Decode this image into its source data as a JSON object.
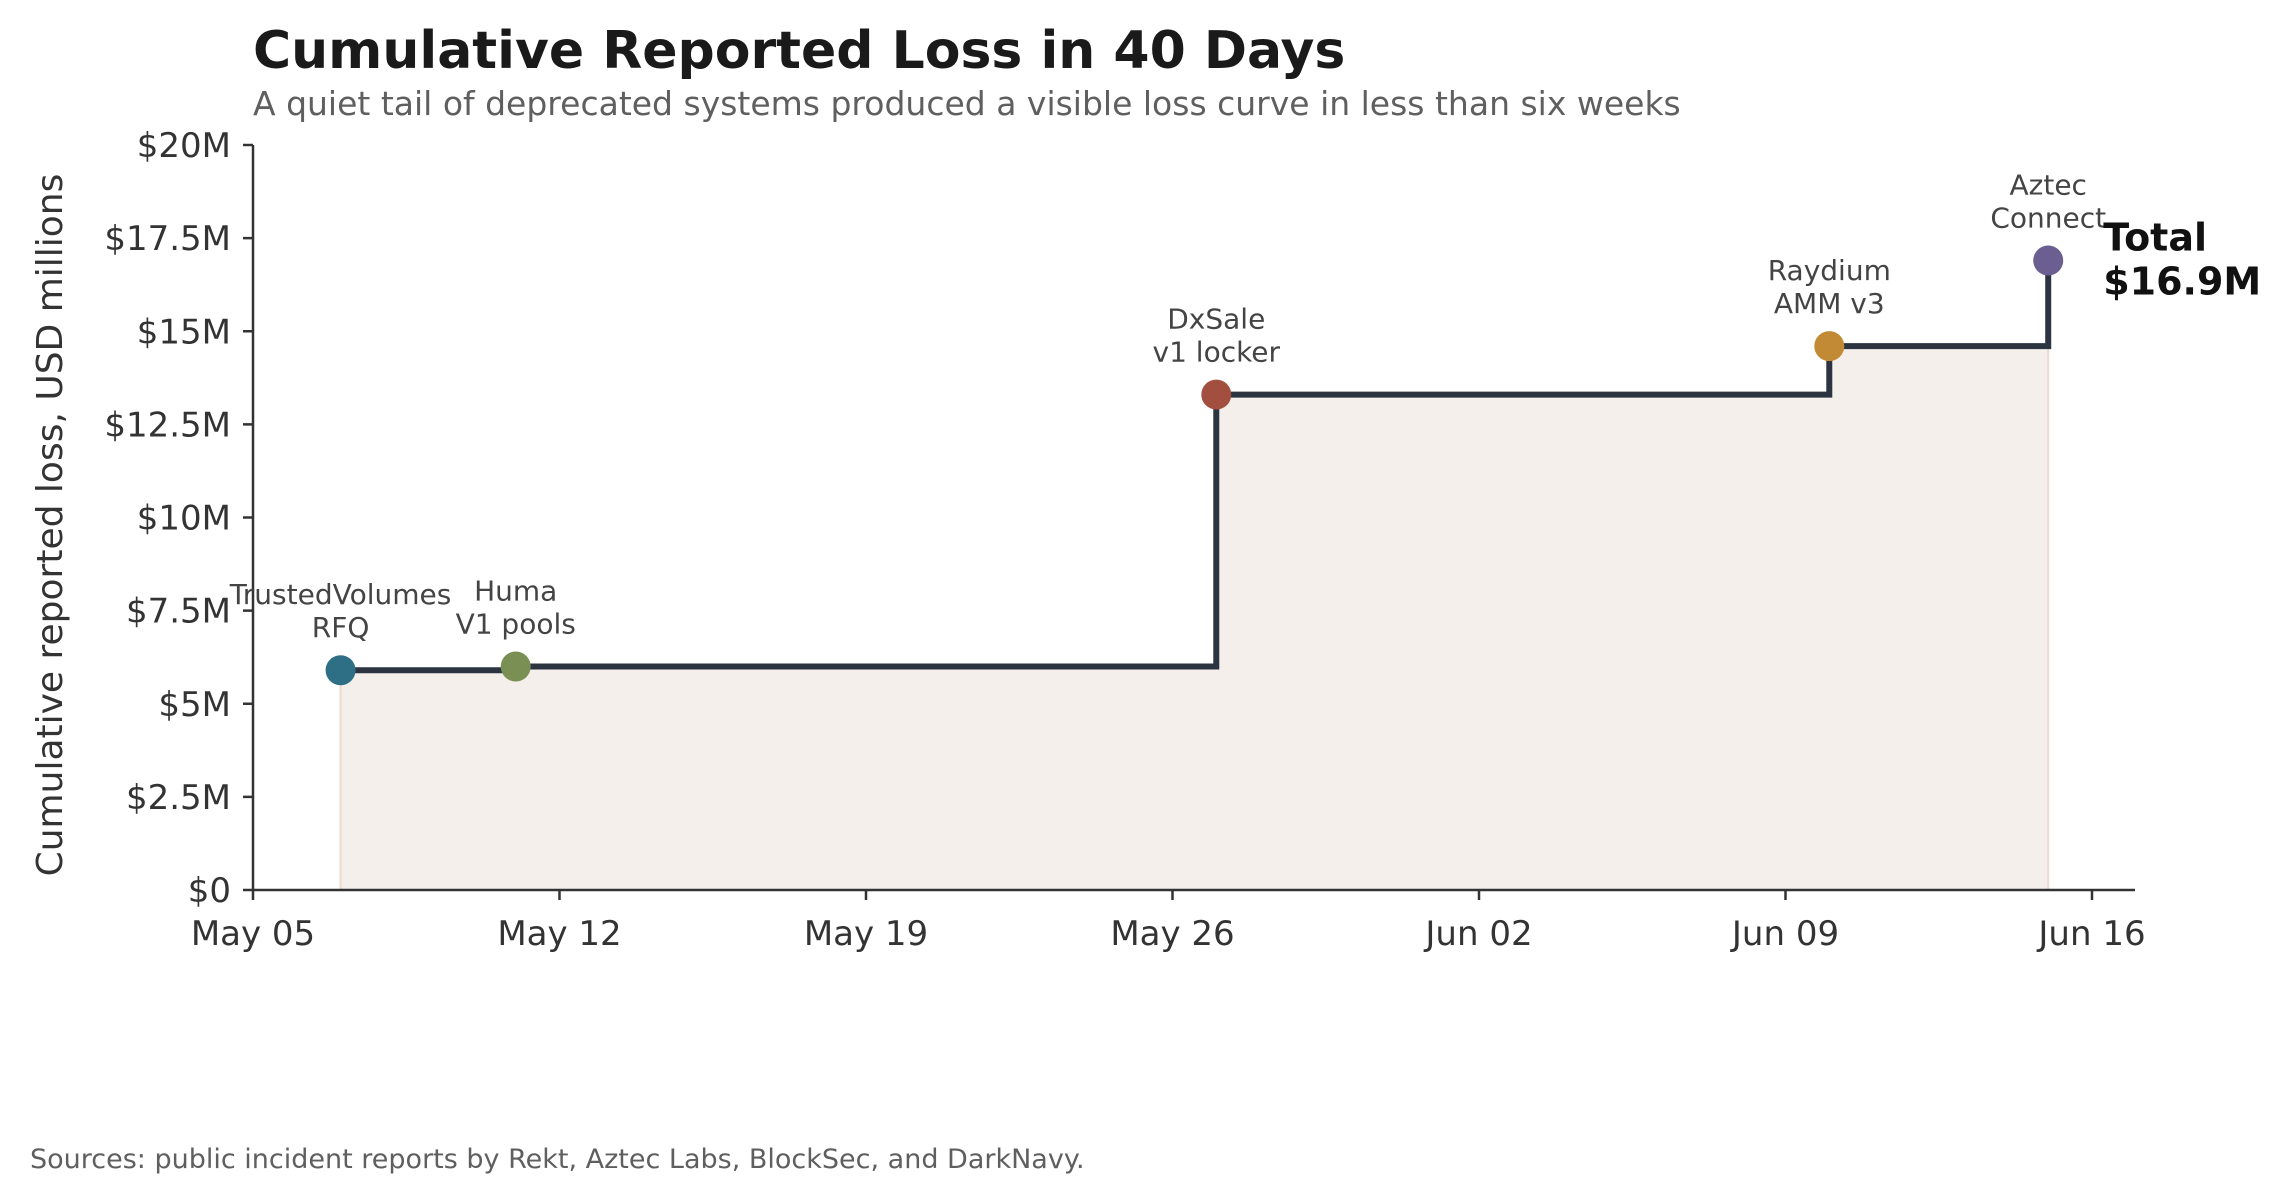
{
  "chart_data": {
    "type": "line",
    "step": true,
    "title": "Cumulative Reported Loss in 40 Days",
    "subtitle": "A quiet tail of deprecated systems produced a visible loss curve in less than six weeks",
    "xlabel": "",
    "ylabel": "Cumulative reported loss, USD millions",
    "xlim": [
      "2025-05-05",
      "2025-06-17"
    ],
    "ylim": [
      0,
      20
    ],
    "x_ticks": [
      {
        "date": "2025-05-05",
        "label": "May 05"
      },
      {
        "date": "2025-05-12",
        "label": "May 12"
      },
      {
        "date": "2025-05-19",
        "label": "May 19"
      },
      {
        "date": "2025-05-26",
        "label": "May 26"
      },
      {
        "date": "2025-06-02",
        "label": "Jun 02"
      },
      {
        "date": "2025-06-09",
        "label": "Jun 09"
      },
      {
        "date": "2025-06-16",
        "label": "Jun 16"
      }
    ],
    "y_ticks": [
      {
        "value": 0,
        "label": "$0"
      },
      {
        "value": 2.5,
        "label": "$2.5M"
      },
      {
        "value": 5,
        "label": "$5M"
      },
      {
        "value": 7.5,
        "label": "$7.5M"
      },
      {
        "value": 10,
        "label": "$10M"
      },
      {
        "value": 12.5,
        "label": "$12.5M"
      },
      {
        "value": 15,
        "label": "$15M"
      },
      {
        "value": 17.5,
        "label": "$17.5M"
      },
      {
        "value": 20,
        "label": "$20M"
      }
    ],
    "grid": false,
    "line_color": "#2b3440",
    "fill_color": "#f5efec",
    "points": [
      {
        "date": "2025-05-07",
        "value": 5.9,
        "label": [
          "TrustedVolumes",
          "RFQ"
        ],
        "color": "#2f6f86"
      },
      {
        "date": "2025-05-11",
        "value": 6.0,
        "label": [
          "Huma",
          "V1 pools"
        ],
        "color": "#7a8f54"
      },
      {
        "date": "2025-05-27",
        "value": 13.3,
        "label": [
          "DxSale",
          "v1 locker"
        ],
        "color": "#a34f3f"
      },
      {
        "date": "2025-06-10",
        "value": 14.6,
        "label": [
          "Raydium",
          "AMM v3"
        ],
        "color": "#c28a35"
      },
      {
        "date": "2025-06-15",
        "value": 16.9,
        "label": [
          "Aztec",
          "Connect"
        ],
        "color": "#6b5f91"
      }
    ],
    "total_annotation": [
      "Total",
      "$16.9M"
    ]
  },
  "footer": {
    "source": "Sources: public incident reports by Rekt, Aztec Labs, BlockSec, and DarkNavy."
  }
}
